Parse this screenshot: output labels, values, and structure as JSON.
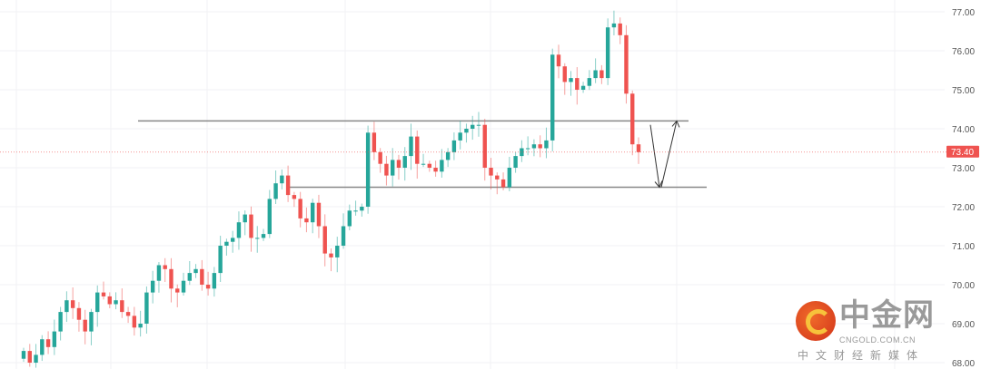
{
  "chart_data": {
    "type": "candlestick",
    "title": "",
    "y_ticks": [
      "77.00",
      "76.00",
      "75.00",
      "74.00",
      "73.00",
      "72.00",
      "71.00",
      "70.00",
      "69.00",
      "68.00"
    ],
    "ylim": [
      67.95,
      77.3
    ],
    "last_price": 73.4,
    "last_price_label": "73.40",
    "up_color": "#26a69a",
    "down_color": "#ef5350",
    "first_open": 68.1,
    "closes": [
      68.3,
      68.0,
      68.2,
      68.6,
      68.4,
      68.8,
      69.3,
      69.6,
      69.4,
      69.1,
      68.8,
      69.3,
      69.8,
      69.7,
      69.5,
      69.6,
      69.3,
      69.2,
      68.9,
      69.0,
      69.8,
      70.1,
      70.5,
      70.4,
      69.9,
      69.8,
      70.1,
      70.3,
      70.4,
      70.0,
      69.9,
      70.3,
      71.0,
      71.1,
      71.2,
      71.6,
      71.8,
      71.2,
      71.2,
      71.3,
      72.2,
      72.6,
      72.8,
      72.3,
      72.2,
      71.7,
      71.6,
      72.1,
      71.5,
      70.8,
      70.7,
      71.0,
      71.5,
      71.9,
      71.9,
      72.0,
      73.9,
      73.4,
      73.1,
      72.8,
      73.2,
      73.0,
      73.3,
      73.8,
      73.1,
      73.1,
      73.0,
      72.9,
      73.2,
      73.4,
      73.7,
      73.9,
      74.0,
      74.1,
      74.1,
      73.0,
      72.8,
      72.7,
      72.5,
      73.0,
      73.3,
      73.5,
      73.5,
      73.6,
      73.5,
      73.7,
      75.9,
      75.6,
      75.2,
      75.3,
      75.0,
      75.1,
      75.3,
      75.5,
      75.3,
      76.6,
      76.7,
      76.4,
      74.9,
      73.6,
      73.4
    ],
    "levels": [
      {
        "name": "resistance",
        "value": 74.2
      },
      {
        "name": "support",
        "value": 72.5
      }
    ],
    "projection_arrows": [
      [
        74.1,
        72.5
      ],
      [
        72.5,
        74.2
      ]
    ]
  },
  "watermark": {
    "title": "中金网",
    "url": "CNGOLD.COM.CN",
    "subtitle": "中文财经新媒体"
  }
}
